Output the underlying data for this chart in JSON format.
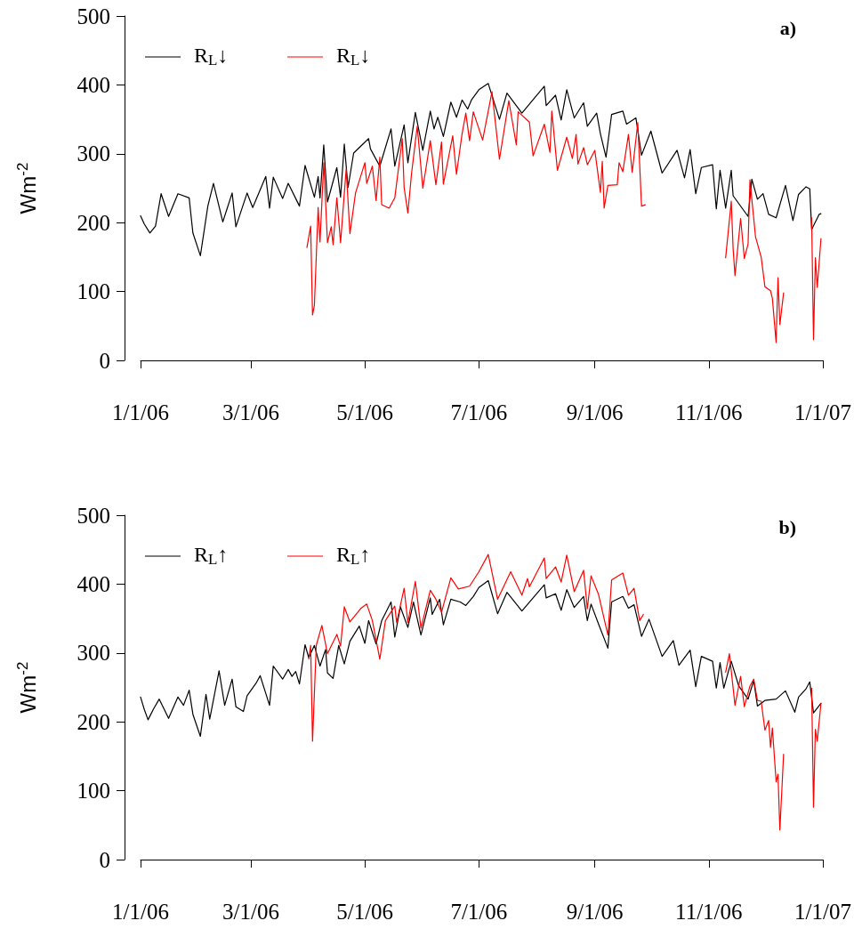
{
  "chart_data": [
    {
      "type": "line",
      "ylabel": "Wm$^{-2}$",
      "annotations": [
        "a)"
      ],
      "xlim": [
        "2006-01-01",
        "2007-01-01"
      ],
      "xticks": [
        {
          "value": "2006-01-01",
          "label": "1/1/06"
        },
        {
          "value": "2006-03-01",
          "label": "3/1/06"
        },
        {
          "value": "2006-05-01",
          "label": "5/1/06"
        },
        {
          "value": "2006-07-01",
          "label": "7/1/06"
        },
        {
          "value": "2006-09-01",
          "label": "9/1/06"
        },
        {
          "value": "2006-11-01",
          "label": "11/1/06"
        },
        {
          "value": "2007-01-01",
          "label": "1/1/07"
        }
      ],
      "ylim": [
        0,
        500
      ],
      "yticks": [
        0,
        100,
        200,
        300,
        400,
        500
      ],
      "grid": false,
      "legend": "top left",
      "marker": "none",
      "line_style": "solid",
      "series": [
        {
          "name": "R$_{L}$↓",
          "color": "#000000",
          "x": [
            "2006-01-01",
            "2006-01-03",
            "2006-01-06",
            "2006-01-09",
            "2006-01-12",
            "2006-01-16",
            "2006-01-21",
            "2006-01-27",
            "2006-01-29",
            "2006-02-02",
            "2006-02-06",
            "2006-02-09",
            "2006-02-14",
            "2006-02-19",
            "2006-02-21",
            "2006-02-27",
            "2006-03-02",
            "2006-03-09",
            "2006-03-11",
            "2006-03-13",
            "2006-03-18",
            "2006-03-21",
            "2006-03-27",
            "2006-03-30",
            "2006-04-04",
            "2006-04-06",
            "2006-04-07",
            "2006-04-09",
            "2006-04-11",
            "2006-04-16",
            "2006-04-18",
            "2006-04-20",
            "2006-04-22",
            "2006-04-25",
            "2006-05-03",
            "2006-05-04",
            "2006-05-09",
            "2006-05-15",
            "2006-05-17",
            "2006-05-22",
            "2006-05-24",
            "2006-05-28",
            "2006-06-01",
            "2006-06-05",
            "2006-06-07",
            "2006-06-09",
            "2006-06-12",
            "2006-06-16",
            "2006-06-19",
            "2006-06-22",
            "2006-06-25",
            "2006-06-27",
            "2006-07-01",
            "2006-07-06",
            "2006-07-12",
            "2006-07-16",
            "2006-07-24",
            "2006-08-05",
            "2006-08-06",
            "2006-08-11",
            "2006-08-14",
            "2006-08-17",
            "2006-08-21",
            "2006-08-26",
            "2006-08-28",
            "2006-09-02",
            "2006-09-04",
            "2006-09-07",
            "2006-09-10",
            "2006-09-16",
            "2006-09-18",
            "2006-09-23",
            "2006-09-26",
            "2006-10-01",
            "2006-10-07",
            "2006-10-15",
            "2006-10-19",
            "2006-10-22",
            "2006-10-25",
            "2006-10-28",
            "2006-11-03",
            "2006-11-05",
            "2006-11-07",
            "2006-11-10",
            "2006-11-13",
            "2006-11-14",
            "2006-11-22",
            "2006-11-24",
            "2006-11-27",
            "2006-11-30",
            "2006-12-03",
            "2006-12-07",
            "2006-12-12",
            "2006-12-16",
            "2006-12-19",
            "2006-12-23",
            "2006-12-25",
            "2006-12-26",
            "2006-12-30",
            "2006-12-31"
          ],
          "values": [
            210,
            198,
            185,
            195,
            242,
            209,
            242,
            236,
            185,
            152,
            224,
            257,
            201,
            243,
            194,
            243,
            222,
            267,
            221,
            266,
            235,
            257,
            224,
            283,
            237,
            267,
            236,
            313,
            230,
            280,
            237,
            314,
            251,
            301,
            322,
            307,
            282,
            336,
            282,
            342,
            287,
            360,
            305,
            362,
            336,
            353,
            325,
            375,
            353,
            378,
            365,
            378,
            393,
            402,
            350,
            388,
            359,
            398,
            370,
            385,
            349,
            393,
            352,
            374,
            340,
            359,
            329,
            295,
            357,
            362,
            343,
            352,
            298,
            333,
            272,
            305,
            265,
            306,
            242,
            280,
            284,
            220,
            276,
            221,
            276,
            239,
            209,
            263,
            234,
            242,
            212,
            207,
            254,
            203,
            241,
            252,
            249,
            190,
            212,
            213
          ]
        },
        {
          "name": "R$_{L}$↓",
          "color": "#ff0000",
          "x": [
            "2006-03-31",
            "2006-04-02",
            "2006-04-03",
            "2006-04-04",
            "2006-04-06",
            "2006-04-07",
            "2006-04-09",
            "2006-04-11",
            "2006-04-13",
            "2006-04-14",
            "2006-04-16",
            "2006-04-18",
            "2006-04-21",
            "2006-04-23",
            "2006-04-26",
            "2006-05-01",
            "2006-05-02",
            "2006-05-05",
            "2006-05-07",
            "2006-05-09",
            "2006-05-10",
            "2006-05-14",
            "2006-05-17",
            "2006-05-21",
            "2006-05-22",
            "2006-05-24",
            "2006-05-26",
            "2006-05-29",
            "2006-06-01",
            "2006-06-05",
            "2006-06-08",
            "2006-06-11",
            "2006-06-12",
            "2006-06-17",
            "2006-06-19",
            "2006-06-22",
            "2006-06-24",
            "2006-06-26",
            "2006-06-28",
            "2006-07-03",
            "2006-07-08",
            "2006-07-12",
            "2006-07-17",
            "2006-07-21",
            "2006-07-22",
            "2006-07-28",
            "2006-07-30",
            "2006-08-05",
            "2006-08-08",
            "2006-08-09",
            "2006-08-12",
            "2006-08-17",
            "2006-08-20",
            "2006-08-22",
            "2006-08-23",
            "2006-08-26",
            "2006-08-28",
            "2006-09-01",
            "2006-09-04",
            "2006-09-05",
            "2006-09-06",
            "2006-09-08",
            "2006-09-13",
            "2006-09-14",
            "2006-09-16",
            "2006-09-19",
            "2006-09-21",
            "2006-09-24",
            "2006-09-26",
            "2006-09-28",
            "2006-10-18",
            "2006-11-10",
            "2006-11-13",
            "2006-11-14",
            "2006-11-15",
            "2006-11-18",
            "2006-11-20",
            "2006-11-22",
            "2006-11-23",
            "2006-11-26",
            "2006-11-29",
            "2006-12-01",
            "2006-12-04",
            "2006-12-05",
            "2006-12-07",
            "2006-12-08",
            "2006-12-09",
            "2006-12-11",
            "2006-12-17",
            "2006-12-26",
            "2006-12-27",
            "2006-12-28",
            "2006-12-29",
            "2006-12-31"
          ],
          "values": [
            164,
            195,
            66,
            80,
            222,
            172,
            287,
            171,
            194,
            168,
            236,
            171,
            278,
            184,
            243,
            287,
            257,
            282,
            232,
            295,
            226,
            221,
            236,
            322,
            251,
            214,
            272,
            340,
            250,
            319,
            255,
            317,
            256,
            326,
            270,
            329,
            359,
            319,
            361,
            320,
            390,
            292,
            377,
            313,
            361,
            346,
            297,
            343,
            302,
            362,
            276,
            324,
            293,
            328,
            285,
            309,
            284,
            305,
            244,
            289,
            221,
            254,
            255,
            287,
            274,
            328,
            273,
            345,
            224,
            226,
            null,
            149,
            231,
            162,
            123,
            206,
            148,
            169,
            262,
            179,
            150,
            107,
            101,
            90,
            26,
            120,
            52,
            98,
            null,
            207,
            30,
            149,
            106,
            177
          ]
        }
      ]
    },
    {
      "type": "line",
      "ylabel": "Wm$^{-2}$",
      "annotations": [
        "b)"
      ],
      "xlim": [
        "2006-01-01",
        "2007-01-01"
      ],
      "xticks": [
        {
          "value": "2006-01-01",
          "label": "1/1/06"
        },
        {
          "value": "2006-03-01",
          "label": "3/1/06"
        },
        {
          "value": "2006-05-01",
          "label": "5/1/06"
        },
        {
          "value": "2006-07-01",
          "label": "7/1/06"
        },
        {
          "value": "2006-09-01",
          "label": "9/1/06"
        },
        {
          "value": "2006-11-01",
          "label": "11/1/06"
        },
        {
          "value": "2007-01-01",
          "label": "1/1/07"
        }
      ],
      "ylim": [
        0,
        500
      ],
      "yticks": [
        0,
        100,
        200,
        300,
        400,
        500
      ],
      "grid": false,
      "legend": "top left",
      "marker": "none",
      "line_style": "solid",
      "series": [
        {
          "name": "R$_{L}$↑",
          "color": "#000000",
          "x": [
            "2006-01-01",
            "2006-01-03",
            "2006-01-05",
            "2006-01-08",
            "2006-01-11",
            "2006-01-16",
            "2006-01-21",
            "2006-01-24",
            "2006-01-27",
            "2006-01-29",
            "2006-02-02",
            "2006-02-05",
            "2006-02-07",
            "2006-02-12",
            "2006-02-15",
            "2006-02-19",
            "2006-02-21",
            "2006-02-25",
            "2006-02-27",
            "2006-03-04",
            "2006-03-06",
            "2006-03-11",
            "2006-03-13",
            "2006-03-18",
            "2006-03-21",
            "2006-03-23",
            "2006-03-25",
            "2006-03-27",
            "2006-03-30",
            "2006-04-01",
            "2006-04-04",
            "2006-04-07",
            "2006-04-10",
            "2006-04-11",
            "2006-04-14",
            "2006-04-17",
            "2006-04-20",
            "2006-04-23",
            "2006-04-28",
            "2006-05-01",
            "2006-05-03",
            "2006-05-07",
            "2006-05-10",
            "2006-05-15",
            "2006-05-17",
            "2006-05-20",
            "2006-05-24",
            "2006-05-27",
            "2006-05-31",
            "2006-06-05",
            "2006-06-06",
            "2006-06-10",
            "2006-06-12",
            "2006-06-16",
            "2006-06-21",
            "2006-06-24",
            "2006-06-28",
            "2006-07-01",
            "2006-07-06",
            "2006-07-11",
            "2006-07-16",
            "2006-07-24",
            "2006-08-05",
            "2006-08-06",
            "2006-08-11",
            "2006-08-14",
            "2006-08-17",
            "2006-08-21",
            "2006-08-26",
            "2006-08-28",
            "2006-08-30",
            "2006-09-03",
            "2006-09-08",
            "2006-09-10",
            "2006-09-16",
            "2006-09-19",
            "2006-09-22",
            "2006-09-26",
            "2006-09-30",
            "2006-10-07",
            "2006-10-13",
            "2006-10-16",
            "2006-10-22",
            "2006-10-25",
            "2006-10-28",
            "2006-11-03",
            "2006-11-05",
            "2006-11-07",
            "2006-11-09",
            "2006-11-13",
            "2006-11-17",
            "2006-11-22",
            "2006-11-25",
            "2006-11-27",
            "2006-12-01",
            "2006-12-07",
            "2006-12-12",
            "2006-12-17",
            "2006-12-19",
            "2006-12-23",
            "2006-12-25",
            "2006-12-27",
            "2006-12-31"
          ],
          "values": [
            236,
            218,
            203,
            219,
            233,
            205,
            236,
            224,
            246,
            211,
            179,
            240,
            204,
            274,
            224,
            262,
            222,
            215,
            238,
            257,
            267,
            224,
            281,
            262,
            276,
            266,
            273,
            255,
            312,
            293,
            311,
            281,
            305,
            271,
            263,
            311,
            284,
            317,
            339,
            314,
            347,
            313,
            347,
            374,
            323,
            367,
            337,
            374,
            326,
            380,
            356,
            378,
            341,
            378,
            374,
            369,
            382,
            395,
            405,
            357,
            388,
            361,
            399,
            380,
            386,
            362,
            392,
            366,
            382,
            347,
            371,
            342,
            307,
            374,
            382,
            365,
            370,
            324,
            349,
            295,
            318,
            282,
            304,
            251,
            295,
            288,
            249,
            286,
            249,
            288,
            252,
            233,
            260,
            223,
            231,
            233,
            245,
            214,
            236,
            248,
            258,
            213,
            227
          ]
        },
        {
          "name": "R$_{L}$↑",
          "color": "#ff0000",
          "x": [
            "2006-04-01",
            "2006-04-02",
            "2006-04-03",
            "2006-04-05",
            "2006-04-08",
            "2006-04-11",
            "2006-04-16",
            "2006-04-18",
            "2006-04-20",
            "2006-04-23",
            "2006-04-29",
            "2006-05-02",
            "2006-05-05",
            "2006-05-09",
            "2006-05-12",
            "2006-05-17",
            "2006-05-18",
            "2006-05-22",
            "2006-05-24",
            "2006-05-28",
            "2006-05-31",
            "2006-06-05",
            "2006-06-08",
            "2006-06-11",
            "2006-06-16",
            "2006-06-20",
            "2006-06-26",
            "2006-07-01",
            "2006-07-06",
            "2006-07-11",
            "2006-07-18",
            "2006-07-24",
            "2006-07-27",
            "2006-07-28",
            "2006-08-05",
            "2006-08-06",
            "2006-08-11",
            "2006-08-14",
            "2006-08-17",
            "2006-08-21",
            "2006-08-26",
            "2006-08-28",
            "2006-08-30",
            "2006-09-03",
            "2006-09-08",
            "2006-09-10",
            "2006-09-16",
            "2006-09-19",
            "2006-09-22",
            "2006-09-25",
            "2006-09-27",
            "2006-10-18",
            "2006-11-10",
            "2006-11-12",
            "2006-11-15",
            "2006-11-18",
            "2006-11-20",
            "2006-11-23",
            "2006-11-25",
            "2006-11-27",
            "2006-11-29",
            "2006-12-01",
            "2006-12-03",
            "2006-12-04",
            "2006-12-05",
            "2006-12-07",
            "2006-12-08",
            "2006-12-09",
            "2006-12-11",
            "2006-12-17",
            "2006-12-26",
            "2006-12-27",
            "2006-12-28",
            "2006-12-29",
            "2006-12-31"
          ],
          "values": [
            291,
            311,
            172,
            311,
            340,
            299,
            327,
            310,
            367,
            345,
            365,
            371,
            347,
            291,
            347,
            368,
            344,
            394,
            344,
            404,
            336,
            391,
            378,
            359,
            409,
            393,
            397,
            418,
            443,
            378,
            418,
            384,
            408,
            396,
            438,
            408,
            425,
            403,
            442,
            389,
            420,
            364,
            412,
            385,
            326,
            406,
            416,
            384,
            394,
            347,
            356,
            null,
            272,
            299,
            224,
            266,
            222,
            252,
            262,
            231,
            230,
            188,
            202,
            163,
            191,
            113,
            124,
            43,
            153,
            null,
            249,
            76,
            189,
            172,
            227
          ]
        }
      ]
    }
  ]
}
